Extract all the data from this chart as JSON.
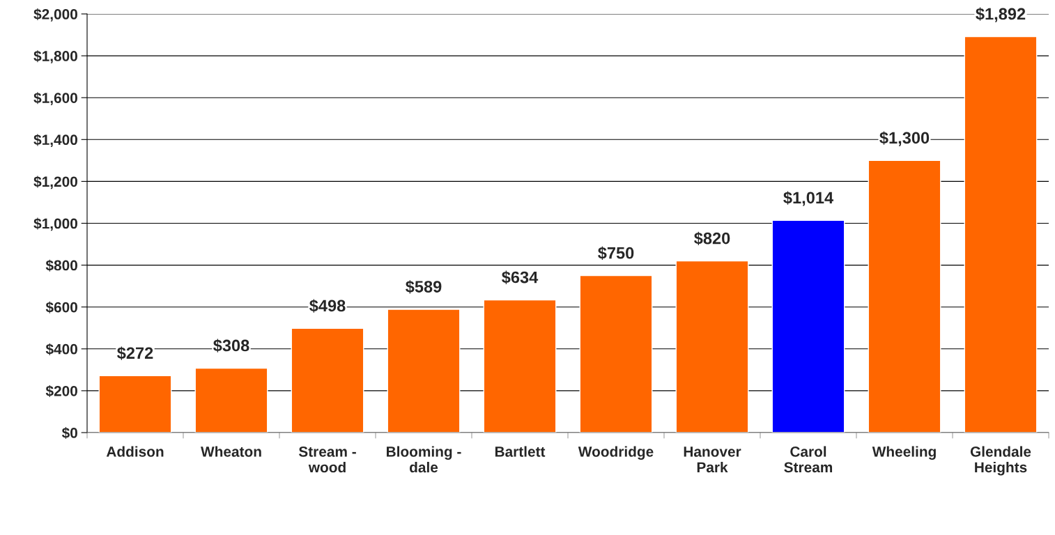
{
  "chart_data": {
    "type": "bar",
    "categories": [
      "Addison",
      "Wheaton",
      "Stream -\nwood",
      "Blooming -\ndale",
      "Bartlett",
      "Woodridge",
      "Hanover\nPark",
      "Carol\nStream",
      "Wheeling",
      "Glendale\nHeights"
    ],
    "values": [
      272,
      308,
      498,
      589,
      634,
      750,
      820,
      1014,
      1300,
      1892
    ],
    "value_labels": [
      "$272",
      "$308",
      "$498",
      "$589",
      "$634",
      "$750",
      "$820",
      "$1,014",
      "$1,300",
      "$1,892"
    ],
    "colors": [
      "#ff6600",
      "#ff6600",
      "#ff6600",
      "#ff6600",
      "#ff6600",
      "#ff6600",
      "#ff6600",
      "#0000ff",
      "#ff6600",
      "#ff6600"
    ],
    "ylim": [
      0,
      2000
    ],
    "yticks": [
      {
        "value": 0,
        "label": "$0"
      },
      {
        "value": 200,
        "label": "$200"
      },
      {
        "value": 400,
        "label": "$400"
      },
      {
        "value": 600,
        "label": "$600"
      },
      {
        "value": 800,
        "label": "$800"
      },
      {
        "value": 1000,
        "label": "$1,000"
      },
      {
        "value": 1200,
        "label": "$1,200"
      },
      {
        "value": 1400,
        "label": "$1,400"
      },
      {
        "value": 1600,
        "label": "$1,600"
      },
      {
        "value": 1800,
        "label": "$1,800"
      },
      {
        "value": 2000,
        "label": "$2,000"
      }
    ],
    "grid": "y",
    "legend": false
  }
}
